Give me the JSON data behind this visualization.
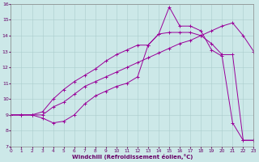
{
  "bg_color": "#cce8e8",
  "line_color": "#990099",
  "grid_color": "#aacccc",
  "xlabel": "Windchill (Refroidissement éolien,°C)",
  "xlim": [
    0,
    23
  ],
  "ylim": [
    7,
    16
  ],
  "yticks": [
    7,
    8,
    9,
    10,
    11,
    12,
    13,
    14,
    15,
    16
  ],
  "xticks": [
    0,
    1,
    2,
    3,
    4,
    5,
    6,
    7,
    8,
    9,
    10,
    11,
    12,
    13,
    14,
    15,
    16,
    17,
    18,
    19,
    20,
    21,
    22,
    23
  ],
  "curve1_x": [
    0,
    1,
    2,
    3,
    4,
    5,
    6,
    7,
    8,
    9,
    10,
    11,
    12,
    13,
    14,
    15,
    16,
    17,
    18,
    19,
    20,
    21,
    22,
    23
  ],
  "curve1_y": [
    9.0,
    9.0,
    9.0,
    8.8,
    8.5,
    8.6,
    9.0,
    9.7,
    10.2,
    10.5,
    10.8,
    11.0,
    11.4,
    13.4,
    14.1,
    14.2,
    14.2,
    14.2,
    14.0,
    13.5,
    12.8,
    12.8,
    7.4,
    7.4
  ],
  "curve2_x": [
    0,
    1,
    2,
    3,
    4,
    5,
    6,
    7,
    8,
    9,
    10,
    11,
    12,
    13,
    14,
    15,
    16,
    17,
    18,
    19,
    20,
    21,
    22,
    23
  ],
  "curve2_y": [
    9.0,
    9.0,
    9.0,
    9.0,
    9.5,
    9.8,
    10.3,
    10.8,
    11.1,
    11.4,
    11.7,
    12.0,
    12.3,
    12.6,
    12.9,
    13.2,
    13.5,
    13.7,
    14.0,
    14.3,
    14.6,
    14.8,
    14.0,
    13.0
  ],
  "curve3_x": [
    0,
    1,
    2,
    3,
    4,
    5,
    6,
    7,
    8,
    9,
    10,
    11,
    12,
    13,
    14,
    15,
    16,
    17,
    18,
    19,
    20,
    21,
    22,
    23
  ],
  "curve3_y": [
    9.0,
    9.0,
    9.0,
    9.2,
    10.0,
    10.6,
    11.1,
    11.5,
    11.9,
    12.4,
    12.8,
    13.1,
    13.4,
    13.4,
    14.1,
    15.8,
    14.6,
    14.6,
    14.3,
    13.1,
    12.7,
    8.5,
    7.4,
    7.4
  ]
}
